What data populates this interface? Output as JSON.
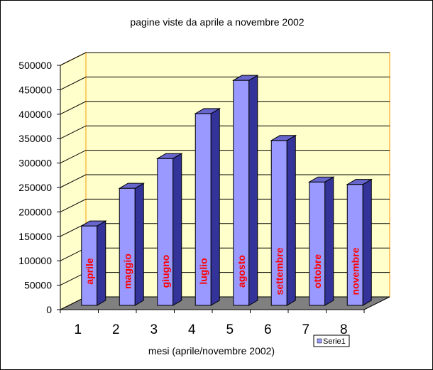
{
  "chart_data": {
    "type": "bar",
    "title": "pagine viste da aprile a novembre 2002",
    "xlabel": "mesi (aprile/novembre 2002)",
    "ylabel": "",
    "categories": [
      "1",
      "2",
      "3",
      "4",
      "5",
      "6",
      "7",
      "8"
    ],
    "bar_labels": [
      "aprile",
      "maggio",
      "giugno",
      "luglio",
      "agosto",
      "settembre",
      "ottobre",
      "novembre"
    ],
    "series": [
      {
        "name": "Serie1",
        "values": [
          180000,
          257000,
          318000,
          410000,
          478000,
          355000,
          270000,
          265000
        ]
      }
    ],
    "ylim": [
      0,
      500000
    ],
    "yticks": [
      0,
      50000,
      100000,
      150000,
      200000,
      250000,
      300000,
      350000,
      400000,
      450000,
      500000
    ],
    "grid": true,
    "legend_position": "bottom-right",
    "colors": {
      "bar_front": "#9999ff",
      "bar_side": "#333399",
      "bar_top": "#6666cc",
      "wall": "#ffffcc",
      "floor": "#808080",
      "bar_label": "#ff0000",
      "wall_edge": "#ff9900"
    }
  }
}
